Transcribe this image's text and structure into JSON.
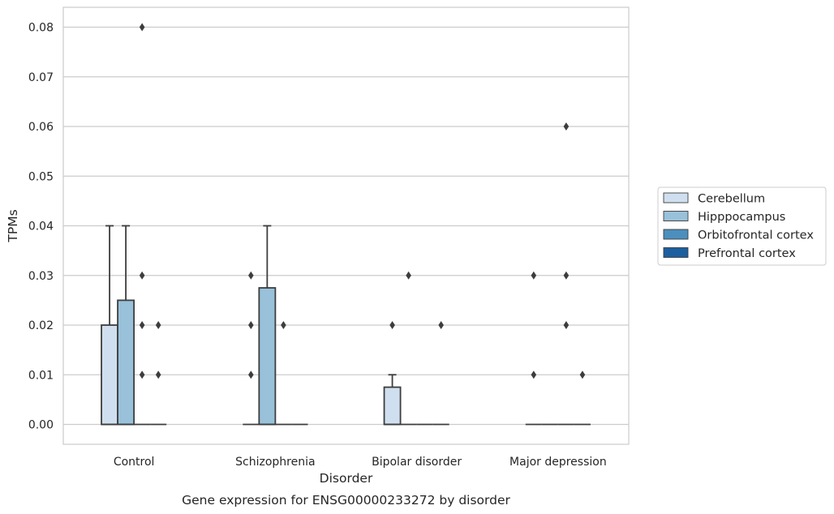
{
  "chart_data": {
    "type": "boxplot",
    "xlabel": "Disorder",
    "ylabel": "TPMs",
    "caption": "Gene expression for ENSG00000233272 by disorder",
    "categories": [
      "Control",
      "Schizophrenia",
      "Bipolar disorder",
      "Major depression"
    ],
    "ylim": [
      -0.004,
      0.084
    ],
    "yticks": [
      0.0,
      0.01,
      0.02,
      0.03,
      0.04,
      0.05,
      0.06,
      0.07,
      0.08
    ],
    "ytick_labels": [
      "0.00",
      "0.01",
      "0.02",
      "0.03",
      "0.04",
      "0.05",
      "0.06",
      "0.07",
      "0.08"
    ],
    "grid": "horizontal",
    "legend_position": "right",
    "series": [
      {
        "name": "Cerebellum",
        "color": "#d0dfef",
        "boxes": [
          {
            "q1": 0,
            "median": 0,
            "q3": 0.02,
            "whislo": 0,
            "whishi": 0.04,
            "fliers": []
          },
          {
            "q1": 0,
            "median": 0,
            "q3": 0,
            "whislo": 0,
            "whishi": 0,
            "fliers": [
              0.01,
              0.02,
              0.03
            ]
          },
          {
            "q1": 0,
            "median": 0,
            "q3": 0.0075,
            "whislo": 0,
            "whishi": 0.01,
            "fliers": [
              0.02
            ]
          },
          {
            "q1": 0,
            "median": 0,
            "q3": 0,
            "whislo": 0,
            "whishi": 0,
            "fliers": [
              0.01,
              0.03
            ]
          }
        ]
      },
      {
        "name": "Hipppocampus",
        "color": "#99c1da",
        "boxes": [
          {
            "q1": 0,
            "median": 0,
            "q3": 0.025,
            "whislo": 0,
            "whishi": 0.04,
            "fliers": []
          },
          {
            "q1": 0,
            "median": 0,
            "q3": 0.0275,
            "whislo": 0,
            "whishi": 0.04,
            "fliers": []
          },
          {
            "q1": 0,
            "median": 0,
            "q3": 0,
            "whislo": 0,
            "whishi": 0,
            "fliers": [
              0.03
            ]
          },
          {
            "q1": 0,
            "median": 0,
            "q3": 0,
            "whislo": 0,
            "whishi": 0,
            "fliers": []
          }
        ]
      },
      {
        "name": "Orbitofrontal cortex",
        "color": "#4c8fbe",
        "boxes": [
          {
            "q1": 0,
            "median": 0,
            "q3": 0,
            "whislo": 0,
            "whishi": 0,
            "fliers": [
              0.01,
              0.02,
              0.03,
              0.08
            ]
          },
          {
            "q1": 0,
            "median": 0,
            "q3": 0,
            "whislo": 0,
            "whishi": 0,
            "fliers": [
              0.02
            ]
          },
          {
            "q1": 0,
            "median": 0,
            "q3": 0,
            "whislo": 0,
            "whishi": 0,
            "fliers": []
          },
          {
            "q1": 0,
            "median": 0,
            "q3": 0,
            "whislo": 0,
            "whishi": 0,
            "fliers": [
              0.02,
              0.03,
              0.06
            ]
          }
        ]
      },
      {
        "name": "Prefrontal cortex",
        "color": "#1c5f9f",
        "boxes": [
          {
            "q1": 0,
            "median": 0,
            "q3": 0,
            "whislo": 0,
            "whishi": 0,
            "fliers": [
              0.01,
              0.02
            ]
          },
          {
            "q1": 0,
            "median": 0,
            "q3": 0,
            "whislo": 0,
            "whishi": 0,
            "fliers": []
          },
          {
            "q1": 0,
            "median": 0,
            "q3": 0,
            "whislo": 0,
            "whishi": 0,
            "fliers": [
              0.02
            ]
          },
          {
            "q1": 0,
            "median": 0,
            "q3": 0,
            "whislo": 0,
            "whishi": 0,
            "fliers": [
              0.01
            ]
          }
        ]
      }
    ]
  }
}
